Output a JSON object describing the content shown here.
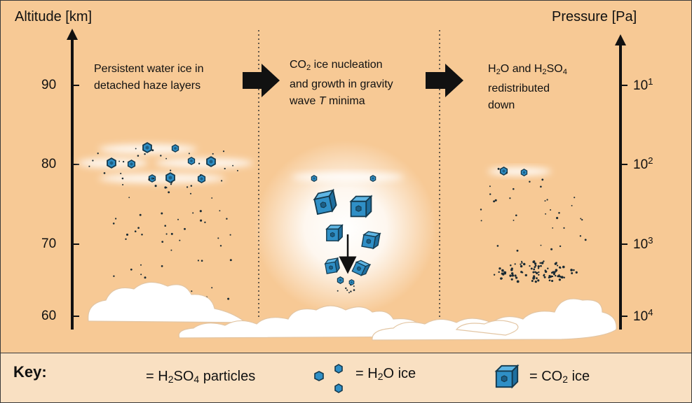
{
  "left_axis": {
    "title": "Altitude [km]",
    "ticks": [
      {
        "label": "90",
        "value": 90
      },
      {
        "label": "80",
        "value": 80
      },
      {
        "label": "70",
        "value": 70
      },
      {
        "label": "60",
        "value": 60
      }
    ]
  },
  "right_axis": {
    "title": "Pressure [Pa]",
    "ticks": [
      {
        "base": "10",
        "exp": "1"
      },
      {
        "base": "10",
        "exp": "2"
      },
      {
        "base": "10",
        "exp": "3"
      },
      {
        "base": "10",
        "exp": "4"
      }
    ]
  },
  "panels": {
    "left": {
      "line1": "Persistent water ice in",
      "line2": "detached haze layers"
    },
    "middle": {
      "line1_a": "CO",
      "line1_sub": "2",
      "line1_b": " ice nucleation",
      "line2": "and growth in gravity",
      "line3_italic": "T",
      "line3_a": "wave ",
      "line3_b": " minima"
    },
    "right": {
      "line1_a": "H",
      "line1_sub1": "2",
      "line1_b": "O and H",
      "line1_sub2": "2",
      "line1_c": "SO",
      "line1_sub3": "4",
      "line2": "redistributed",
      "line3": "down"
    }
  },
  "key": {
    "title": "Key:",
    "h2so4": {
      "pre": "= H",
      "sub1": "2",
      "mid": "SO",
      "sub2": "4",
      "post": " particles"
    },
    "h2o": {
      "pre": "= H",
      "sub": "2",
      "post": "O ice"
    },
    "co2": {
      "pre": "= CO",
      "sub": "2",
      "post": " ice"
    }
  },
  "colors": {
    "background": "#f7c995",
    "key_background": "#f9e0c2",
    "ice_blue": "#2f8fc6",
    "ice_outline": "#14394d",
    "cloud": "#ffffff",
    "axis": "#111111"
  }
}
